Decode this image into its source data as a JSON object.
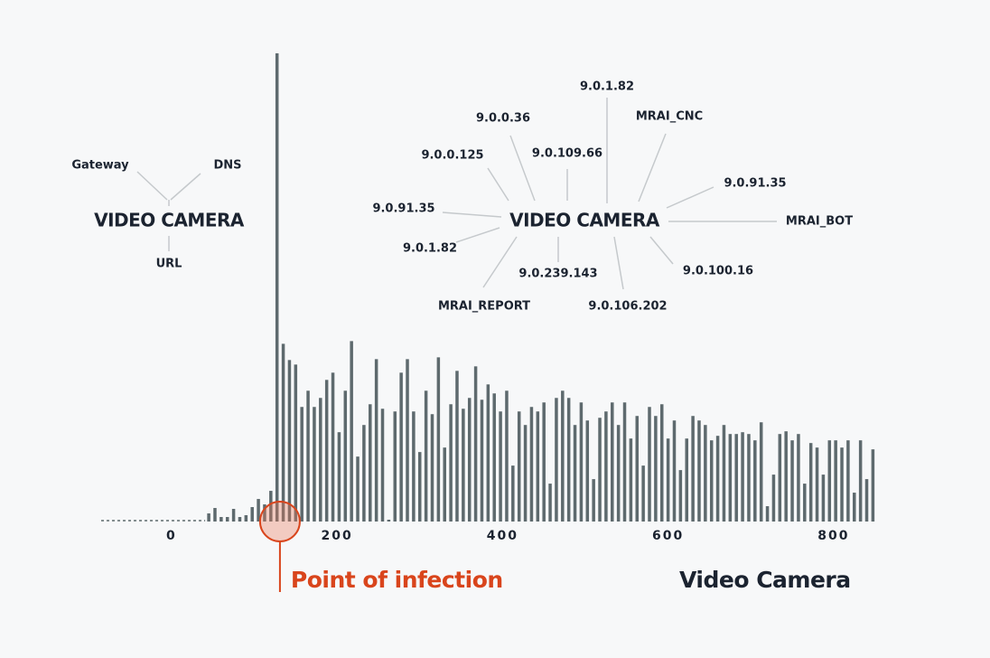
{
  "chart_data": {
    "type": "bar",
    "label": "Video Camera",
    "annotation": {
      "text": "Point of infection",
      "x": 131
    },
    "x": [
      45,
      52.5,
      60,
      67.5,
      75,
      82.5,
      90,
      97.5,
      105,
      112.5,
      120,
      127.5,
      135,
      142.5,
      150,
      157.5,
      165,
      172.5,
      180,
      187.5,
      195,
      202.5,
      210,
      217.5,
      225,
      232.5,
      240,
      247.5,
      255,
      262.5,
      270,
      277.5,
      285,
      292.5,
      300,
      307.5,
      315,
      322.5,
      330,
      337.5,
      345,
      352.5,
      360,
      367.5,
      375,
      382.5,
      390,
      397.5,
      405,
      412.5,
      420,
      427.5,
      435,
      442.5,
      450,
      457.5,
      465,
      472.5,
      480,
      487.5,
      495,
      502.5,
      510,
      517.5,
      525,
      532.5,
      540,
      547.5,
      555,
      562.5,
      570,
      577.5,
      585,
      592.5,
      600,
      607.5,
      615,
      622.5,
      630,
      637.5,
      645,
      652.5,
      660,
      667.5,
      675,
      682.5,
      690,
      697.5,
      705,
      712.5,
      720,
      727.5,
      735,
      742.5,
      750,
      757.5,
      765,
      772.5,
      780,
      787.5,
      795,
      802.5,
      810,
      817.5,
      825,
      832.5,
      840,
      847.5
    ],
    "values": [
      9,
      15,
      5,
      5,
      14,
      5,
      7,
      16,
      25,
      19,
      34,
      519,
      197,
      179,
      174,
      127,
      145,
      127,
      137,
      157,
      165,
      99,
      145,
      200,
      72,
      107,
      130,
      180,
      125,
      2,
      122,
      165,
      180,
      122,
      77,
      145,
      119,
      182,
      82,
      130,
      167,
      125,
      137,
      172,
      135,
      152,
      142,
      122,
      145,
      62,
      122,
      107,
      127,
      122,
      132,
      42,
      137,
      145,
      137,
      107,
      132,
      112,
      47,
      115,
      122,
      132,
      107,
      132,
      92,
      117,
      62,
      127,
      117,
      130,
      92,
      112,
      57,
      92,
      117,
      112,
      107,
      90,
      95,
      107,
      97,
      97,
      99,
      97,
      90,
      110,
      17,
      52,
      97,
      100,
      90,
      97,
      42,
      87,
      82,
      52,
      90,
      90,
      82,
      90,
      32,
      90,
      47,
      80
    ],
    "color": "#5e6a6e",
    "xlim": [
      -85,
      870
    ],
    "xticks": [
      0,
      200,
      400,
      600,
      800
    ],
    "ylim": [
      0,
      520
    ],
    "grid": false
  },
  "diagrams": [
    {
      "center": "VIDEO CAMERA",
      "nodes": [
        "Gateway",
        "DNS",
        "URL"
      ]
    },
    {
      "center": "VIDEO CAMERA",
      "nodes": [
        "9.0.1.82",
        "9.0.0.36",
        "MRAI_CNC",
        "9.0.0.125",
        "9.0.109.66",
        "9.0.91.35",
        "9.0.91.35",
        "MRAI_BOT",
        "9.0.1.82",
        "9.0.239.143",
        "9.0.100.16",
        "MRAI_REPORT",
        "9.0.106.202"
      ]
    }
  ]
}
